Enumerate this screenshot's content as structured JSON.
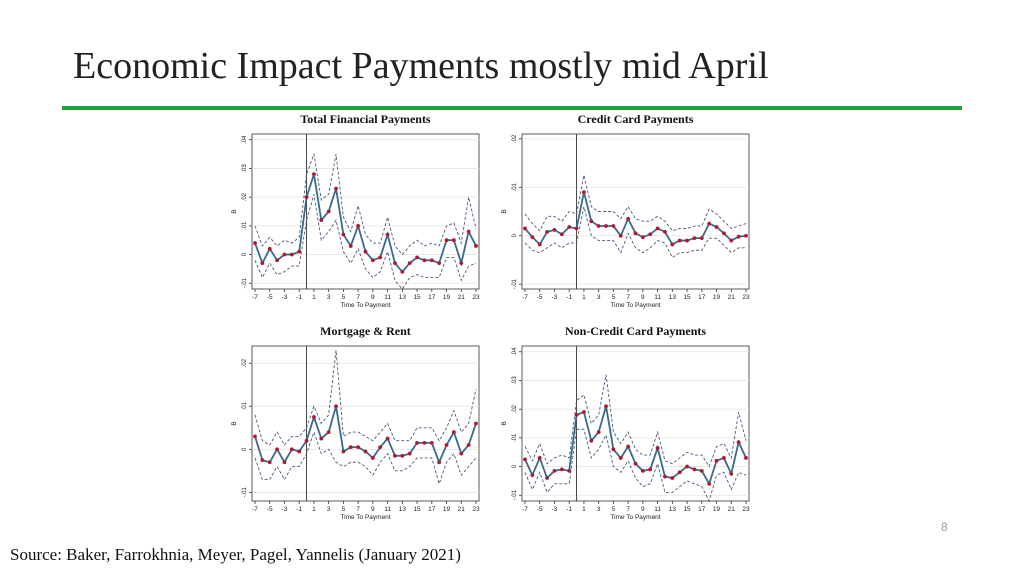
{
  "slide": {
    "title": "Economic Impact Payments mostly mid April",
    "page_number": "8",
    "source": "Source: Baker, Farrokhnia, Meyer, Pagel, Yannelis (January 2021)",
    "accent_color": "#22a03a"
  },
  "chart_data": [
    {
      "type": "line",
      "title": "Total Financial Payments",
      "xlabel": "Time To Payment",
      "ylabel": "B",
      "x": [
        -7,
        -6,
        -5,
        -4,
        -3,
        -2,
        -1,
        0,
        1,
        2,
        3,
        4,
        5,
        6,
        7,
        8,
        9,
        10,
        11,
        12,
        13,
        14,
        15,
        16,
        17,
        18,
        19,
        20,
        21,
        22,
        23
      ],
      "xticks": [
        "-7",
        "-5",
        "-3",
        "-1",
        "1",
        "3",
        "5",
        "7",
        "9",
        "11",
        "13",
        "15",
        "17",
        "19",
        "21",
        "23"
      ],
      "yticks": [
        -0.01,
        0,
        0.01,
        0.02,
        0.03,
        0.04
      ],
      "ytick_labels": [
        "-.01",
        "0",
        ".01",
        ".02",
        ".03",
        ".04"
      ],
      "ylim": [
        -0.012,
        0.042
      ],
      "event_line_x": 0,
      "series": [
        {
          "role": "estimate",
          "color": "#3a6a8a",
          "marker_color": "#b01830",
          "values": [
            0.004,
            -0.003,
            0.002,
            -0.002,
            0.0,
            0.0,
            0.001,
            0.02,
            0.028,
            0.012,
            0.015,
            0.023,
            0.007,
            0.003,
            0.01,
            0.001,
            -0.002,
            -0.001,
            0.007,
            -0.003,
            -0.006,
            -0.003,
            -0.001,
            -0.002,
            -0.002,
            -0.003,
            0.005,
            0.005,
            -0.003,
            0.008,
            0.003
          ]
        },
        {
          "role": "ci_upper",
          "color": "#4a5a7a",
          "values": [
            0.01,
            0.003,
            0.006,
            0.003,
            0.005,
            0.004,
            0.006,
            0.028,
            0.035,
            0.019,
            0.021,
            0.035,
            0.013,
            0.008,
            0.017,
            0.007,
            0.004,
            0.004,
            0.013,
            0.003,
            0.0,
            0.003,
            0.005,
            0.003,
            0.004,
            0.003,
            0.01,
            0.011,
            0.004,
            0.02,
            0.009
          ]
        },
        {
          "role": "ci_lower",
          "color": "#4a5a7a",
          "values": [
            -0.002,
            -0.008,
            -0.003,
            -0.007,
            -0.006,
            -0.004,
            -0.004,
            0.012,
            0.021,
            0.005,
            0.008,
            0.012,
            0.001,
            -0.003,
            0.002,
            -0.005,
            -0.008,
            -0.006,
            0.001,
            -0.009,
            -0.012,
            -0.008,
            -0.007,
            -0.008,
            -0.008,
            -0.008,
            -0.001,
            -0.001,
            -0.009,
            -0.004,
            -0.003
          ]
        }
      ]
    },
    {
      "type": "line",
      "title": "Credit Card Payments",
      "xlabel": "Time To Payment",
      "ylabel": "B",
      "x": [
        -7,
        -6,
        -5,
        -4,
        -3,
        -2,
        -1,
        0,
        1,
        2,
        3,
        4,
        5,
        6,
        7,
        8,
        9,
        10,
        11,
        12,
        13,
        14,
        15,
        16,
        17,
        18,
        19,
        20,
        21,
        22,
        23
      ],
      "xticks": [
        "-7",
        "-5",
        "-3",
        "-1",
        "1",
        "3",
        "5",
        "7",
        "9",
        "11",
        "13",
        "15",
        "17",
        "19",
        "21",
        "23"
      ],
      "yticks": [
        -0.01,
        0,
        0.01,
        0.02
      ],
      "ytick_labels": [
        "-.01",
        "0",
        ".01",
        ".02"
      ],
      "ylim": [
        -0.011,
        0.021
      ],
      "event_line_x": 0,
      "series": [
        {
          "role": "estimate",
          "color": "#3a6a8a",
          "marker_color": "#b01830",
          "values": [
            0.0015,
            -0.0003,
            -0.0018,
            0.0008,
            0.0012,
            0.0003,
            0.0018,
            0.0015,
            0.009,
            0.003,
            0.002,
            0.002,
            0.002,
            0.0,
            0.0035,
            0.0005,
            -0.0003,
            0.0003,
            0.0015,
            0.0008,
            -0.0018,
            -0.001,
            -0.001,
            -0.0005,
            -0.0005,
            0.0025,
            0.0018,
            0.0005,
            -0.001,
            -0.0002,
            0.0
          ]
        },
        {
          "role": "ci_upper",
          "color": "#4a5a7a",
          "values": [
            0.0045,
            0.0025,
            0.001,
            0.004,
            0.004,
            0.003,
            0.005,
            0.0045,
            0.0125,
            0.006,
            0.005,
            0.005,
            0.005,
            0.0035,
            0.006,
            0.0035,
            0.003,
            0.003,
            0.004,
            0.003,
            0.001,
            0.0015,
            0.0015,
            0.002,
            0.002,
            0.0055,
            0.0045,
            0.003,
            0.0015,
            0.002,
            0.0025
          ]
        },
        {
          "role": "ci_lower",
          "color": "#4a5a7a",
          "values": [
            -0.0015,
            -0.003,
            -0.0035,
            -0.0025,
            -0.0015,
            -0.0025,
            -0.0015,
            -0.0015,
            0.006,
            0.0,
            -0.001,
            -0.001,
            -0.001,
            -0.0035,
            0.0005,
            -0.0025,
            -0.0035,
            -0.0025,
            -0.001,
            -0.0015,
            -0.0045,
            -0.0035,
            -0.0035,
            -0.003,
            -0.003,
            -0.0005,
            -0.0005,
            -0.002,
            -0.0035,
            -0.0025,
            -0.0025
          ]
        }
      ]
    },
    {
      "type": "line",
      "title": "Mortgage & Rent",
      "xlabel": "Time To Payment",
      "ylabel": "B",
      "x": [
        -7,
        -6,
        -5,
        -4,
        -3,
        -2,
        -1,
        0,
        1,
        2,
        3,
        4,
        5,
        6,
        7,
        8,
        9,
        10,
        11,
        12,
        13,
        14,
        15,
        16,
        17,
        18,
        19,
        20,
        21,
        22,
        23
      ],
      "xticks": [
        "-7",
        "-5",
        "-3",
        "-1",
        "1",
        "3",
        "5",
        "7",
        "9",
        "11",
        "13",
        "15",
        "17",
        "19",
        "21",
        "23"
      ],
      "yticks": [
        -0.01,
        0,
        0.01,
        0.02
      ],
      "ytick_labels": [
        "-.01",
        "0",
        ".01",
        ".02"
      ],
      "ylim": [
        -0.012,
        0.024
      ],
      "event_line_x": 0,
      "series": [
        {
          "role": "estimate",
          "color": "#3a6a8a",
          "marker_color": "#b01830",
          "values": [
            0.003,
            -0.0025,
            -0.003,
            0.0,
            -0.003,
            0.0,
            -0.0005,
            0.002,
            0.0075,
            0.0025,
            0.004,
            0.01,
            -0.0005,
            0.0005,
            0.0005,
            -0.0005,
            -0.002,
            0.0005,
            0.0025,
            -0.0015,
            -0.0015,
            -0.001,
            0.0015,
            0.0015,
            0.0015,
            -0.003,
            0.001,
            0.004,
            -0.001,
            0.001,
            0.006
          ]
        },
        {
          "role": "ci_upper",
          "color": "#4a5a7a",
          "values": [
            0.008,
            0.002,
            0.001,
            0.004,
            0.001,
            0.003,
            0.003,
            0.005,
            0.01,
            0.006,
            0.008,
            0.023,
            0.003,
            0.004,
            0.004,
            0.003,
            0.002,
            0.004,
            0.006,
            0.002,
            0.002,
            0.002,
            0.005,
            0.005,
            0.005,
            0.002,
            0.005,
            0.009,
            0.004,
            0.006,
            0.014
          ]
        },
        {
          "role": "ci_lower",
          "color": "#4a5a7a",
          "values": [
            -0.002,
            -0.007,
            -0.007,
            -0.004,
            -0.007,
            -0.004,
            -0.004,
            -0.001,
            0.004,
            -0.001,
            0.0,
            -0.003,
            -0.004,
            -0.003,
            -0.003,
            -0.004,
            -0.006,
            -0.003,
            -0.001,
            -0.005,
            -0.005,
            -0.004,
            -0.002,
            -0.002,
            -0.002,
            -0.008,
            -0.003,
            -0.001,
            -0.006,
            -0.004,
            -0.002
          ]
        }
      ]
    },
    {
      "type": "line",
      "title": "Non-Credit Card Payments",
      "xlabel": "Time To Payment",
      "ylabel": "B",
      "x": [
        -7,
        -6,
        -5,
        -4,
        -3,
        -2,
        -1,
        0,
        1,
        2,
        3,
        4,
        5,
        6,
        7,
        8,
        9,
        10,
        11,
        12,
        13,
        14,
        15,
        16,
        17,
        18,
        19,
        20,
        21,
        22,
        23
      ],
      "xticks": [
        "-7",
        "-5",
        "-3",
        "-1",
        "1",
        "3",
        "5",
        "7",
        "9",
        "11",
        "13",
        "15",
        "17",
        "19",
        "21",
        "23"
      ],
      "yticks": [
        -0.01,
        0,
        0.01,
        0.02,
        0.03,
        0.04
      ],
      "ytick_labels": [
        "-.01",
        "0",
        ".01",
        ".02",
        ".03",
        ".04"
      ],
      "ylim": [
        -0.012,
        0.042
      ],
      "event_line_x": 0,
      "series": [
        {
          "role": "estimate",
          "color": "#3a6a8a",
          "marker_color": "#b01830",
          "values": [
            0.0025,
            -0.003,
            0.003,
            -0.004,
            -0.0015,
            -0.001,
            -0.0015,
            0.018,
            0.019,
            0.009,
            0.012,
            0.021,
            0.006,
            0.003,
            0.007,
            0.001,
            -0.0015,
            -0.001,
            0.0065,
            -0.0035,
            -0.004,
            -0.002,
            0.0,
            -0.001,
            -0.0015,
            -0.006,
            0.002,
            0.003,
            -0.0025,
            0.0085,
            0.003
          ]
        },
        {
          "role": "ci_upper",
          "color": "#4a5a7a",
          "values": [
            0.007,
            0.002,
            0.008,
            0.001,
            0.003,
            0.004,
            0.003,
            0.023,
            0.025,
            0.015,
            0.018,
            0.032,
            0.012,
            0.008,
            0.012,
            0.006,
            0.004,
            0.004,
            0.012,
            0.002,
            0.001,
            0.003,
            0.005,
            0.004,
            0.004,
            0.0,
            0.007,
            0.008,
            0.003,
            0.019,
            0.009
          ]
        },
        {
          "role": "ci_lower",
          "color": "#4a5a7a",
          "values": [
            -0.002,
            -0.008,
            -0.002,
            -0.009,
            -0.006,
            -0.006,
            -0.006,
            0.013,
            0.013,
            0.003,
            0.006,
            0.011,
            0.0,
            -0.002,
            0.002,
            -0.004,
            -0.007,
            -0.006,
            0.001,
            -0.009,
            -0.009,
            -0.007,
            -0.005,
            -0.006,
            -0.007,
            -0.012,
            -0.003,
            -0.002,
            -0.008,
            -0.002,
            -0.003
          ]
        }
      ]
    }
  ]
}
